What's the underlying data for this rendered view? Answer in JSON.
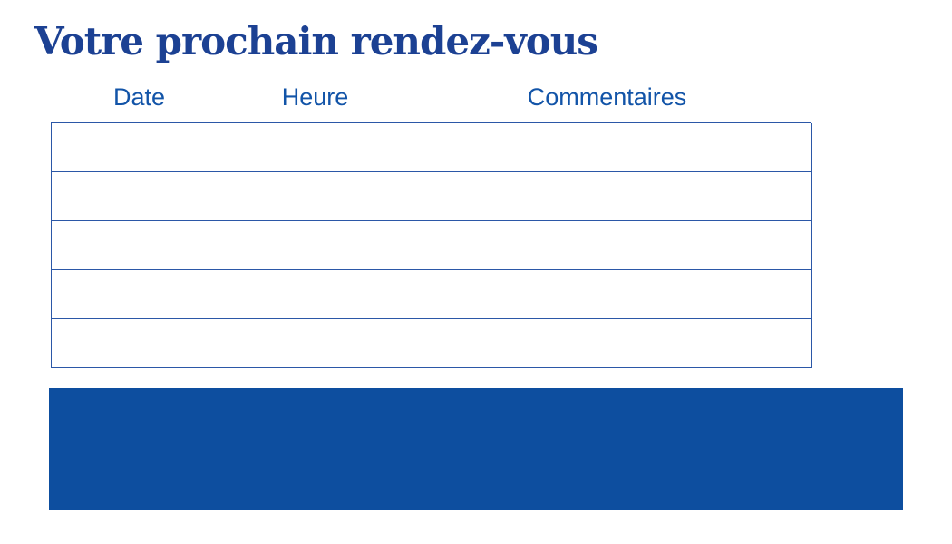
{
  "title": {
    "text": "Votre prochain rendez-vous",
    "color": "#1c4193"
  },
  "table": {
    "columns": [
      {
        "label": "Date"
      },
      {
        "label": "Heure"
      },
      {
        "label": "Commentaires"
      }
    ],
    "header_color": "#1254a8",
    "border_color": "#2b57a7",
    "rows": [
      [
        "",
        "",
        ""
      ],
      [
        "",
        "",
        ""
      ],
      [
        "",
        "",
        ""
      ],
      [
        "",
        "",
        ""
      ],
      [
        "",
        "",
        ""
      ]
    ]
  },
  "banner": {
    "color": "#0d4e9f"
  }
}
